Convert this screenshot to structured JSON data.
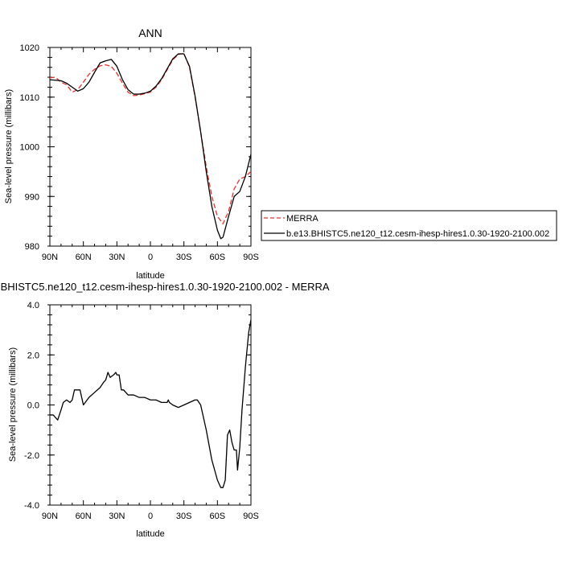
{
  "chart_data": [
    {
      "type": "line",
      "title": "ANN",
      "xlabel": "latitude",
      "ylabel": "Sea-level pressure (millibars)",
      "xlim": [
        90,
        -90
      ],
      "ylim": [
        980,
        1020
      ],
      "x_ticks": [
        90,
        60,
        30,
        0,
        -30,
        -60,
        -90
      ],
      "x_tick_labels": [
        "90N",
        "60N",
        "30N",
        "0",
        "30S",
        "60S",
        "90S"
      ],
      "y_ticks": [
        980,
        990,
        1000,
        1010,
        1020
      ],
      "y_tick_labels": [
        "980",
        "990",
        "1000",
        "1010",
        "1020"
      ],
      "legend_position": "right",
      "series": [
        {
          "name": "MERRA",
          "color": "#e8302a",
          "dash": "dashed",
          "x": [
            90,
            85,
            80,
            75,
            70,
            65,
            60,
            55,
            50,
            45,
            40,
            35,
            30,
            25,
            20,
            15,
            10,
            5,
            0,
            -5,
            -10,
            -15,
            -20,
            -25,
            -30,
            -35,
            -40,
            -45,
            -50,
            -55,
            -60,
            -65,
            -70,
            -75,
            -80,
            -85,
            -90
          ],
          "values": [
            1013.9,
            1014.0,
            1013.0,
            1012.5,
            1011.0,
            1011.5,
            1013.0,
            1014.6,
            1015.6,
            1016.3,
            1016.5,
            1016.2,
            1014.8,
            1012.8,
            1011.0,
            1010.3,
            1010.4,
            1010.7,
            1011.0,
            1012.0,
            1013.5,
            1015.5,
            1017.5,
            1018.6,
            1018.8,
            1016.0,
            1010.0,
            1003.0,
            996.0,
            990.0,
            986.0,
            984.5,
            987.0,
            991.5,
            993.5,
            994.0,
            995.0
          ]
        },
        {
          "name": "b.e13.BHISTC5.ne120_t12.cesm-ihesp-hires1.0.30-1920-2100.002",
          "color": "#000000",
          "dash": "solid",
          "x": [
            90,
            85,
            80,
            75,
            70,
            65,
            60,
            55,
            50,
            45,
            40,
            35,
            30,
            25,
            20,
            15,
            10,
            5,
            0,
            -5,
            -10,
            -15,
            -20,
            -25,
            -30,
            -35,
            -40,
            -45,
            -50,
            -55,
            -60,
            -63,
            -65,
            -70,
            -75,
            -80,
            -85,
            -90
          ],
          "values": [
            1013.5,
            1013.4,
            1013.3,
            1012.8,
            1012.0,
            1011.2,
            1011.7,
            1013.0,
            1015.0,
            1016.9,
            1017.3,
            1017.6,
            1016.2,
            1013.5,
            1011.5,
            1010.6,
            1010.6,
            1010.8,
            1011.2,
            1012.2,
            1013.7,
            1015.7,
            1017.7,
            1018.7,
            1018.7,
            1016.2,
            1010.2,
            1003.0,
            995.0,
            988.0,
            983.2,
            981.5,
            981.8,
            986.0,
            990.0,
            991.0,
            994.0,
            998.5
          ]
        }
      ]
    },
    {
      "type": "line",
      "title": "b.e13.BHISTC5.ne120_t12.cesm-ihesp-hires1.0.30-1920-2100.002 - MERRA",
      "xlabel": "latitude",
      "ylabel": "Sea-level pressure (millibars)",
      "xlim": [
        90,
        -90
      ],
      "ylim": [
        -4.0,
        4.0
      ],
      "x_ticks": [
        90,
        60,
        30,
        0,
        -30,
        -60,
        -90
      ],
      "x_tick_labels": [
        "90N",
        "60N",
        "30N",
        "0",
        "30S",
        "60S",
        "90S"
      ],
      "y_ticks": [
        -4.0,
        -2.0,
        0.0,
        2.0,
        4.0
      ],
      "y_tick_labels": [
        "-4.0",
        "-2.0",
        "0.0",
        "2.0",
        "4.0"
      ],
      "series": [
        {
          "name": "",
          "color": "#000000",
          "dash": "solid",
          "x": [
            90,
            87,
            85,
            83,
            80,
            78,
            75,
            72,
            70,
            68,
            66,
            63,
            60,
            55,
            50,
            45,
            42,
            40,
            38,
            36,
            33,
            31,
            30,
            28,
            26,
            24,
            20,
            15,
            10,
            5,
            0,
            -5,
            -10,
            -15,
            -16,
            -17,
            -20,
            -25,
            -30,
            -35,
            -40,
            -42,
            -45,
            -50,
            -55,
            -60,
            -63,
            -65,
            -67,
            -69,
            -71,
            -73,
            -75,
            -77,
            -78,
            -80,
            -82,
            -85,
            -88,
            -90
          ],
          "values": [
            -0.4,
            -0.4,
            -0.5,
            -0.6,
            -0.2,
            0.1,
            0.2,
            0.1,
            0.2,
            0.6,
            0.6,
            0.6,
            0.0,
            0.3,
            0.5,
            0.7,
            0.9,
            1.0,
            1.3,
            1.1,
            1.2,
            1.3,
            1.2,
            1.2,
            0.6,
            0.6,
            0.4,
            0.4,
            0.3,
            0.3,
            0.2,
            0.2,
            0.1,
            0.1,
            0.2,
            0.1,
            0.0,
            -0.1,
            0.0,
            0.1,
            0.2,
            0.2,
            0.0,
            -1.0,
            -2.2,
            -3.0,
            -3.3,
            -3.3,
            -3.0,
            -1.2,
            -1.0,
            -1.5,
            -1.8,
            -1.8,
            -2.6,
            -1.7,
            -0.2,
            1.5,
            2.9,
            3.4
          ]
        }
      ]
    }
  ]
}
